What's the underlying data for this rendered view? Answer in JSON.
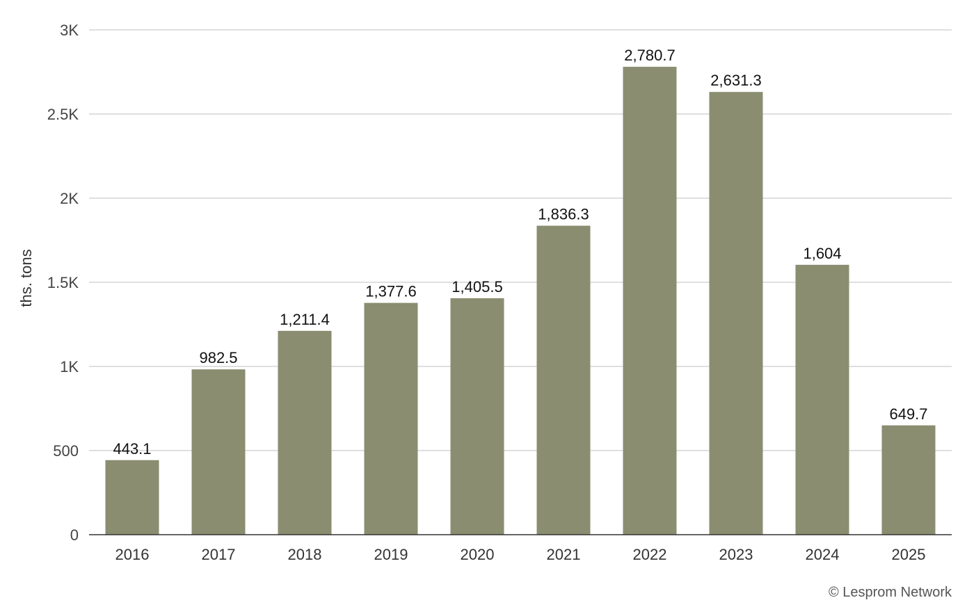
{
  "chart_data": {
    "type": "bar",
    "categories": [
      "2016",
      "2017",
      "2018",
      "2019",
      "2020",
      "2021",
      "2022",
      "2023",
      "2024",
      "2025"
    ],
    "values": [
      443.1,
      982.5,
      1211.4,
      1377.6,
      1405.5,
      1836.3,
      2780.7,
      2631.3,
      1604,
      649.7
    ],
    "value_labels": [
      "443.1",
      "982.5",
      "1,211.4",
      "1,377.6",
      "1,405.5",
      "1,836.3",
      "2,780.7",
      "2,631.3",
      "1,604",
      "649.7"
    ],
    "ylabel": "ths. tons",
    "ylim": [
      0,
      3000
    ],
    "yticks": [
      0,
      500,
      1000,
      1500,
      2000,
      2500,
      3000
    ],
    "ytick_labels": [
      "0",
      "500",
      "1K",
      "1.5K",
      "2K",
      "2.5K",
      "3K"
    ],
    "grid": true,
    "bar_color": "#8a8d70"
  },
  "credit": "© Lesprom Network"
}
